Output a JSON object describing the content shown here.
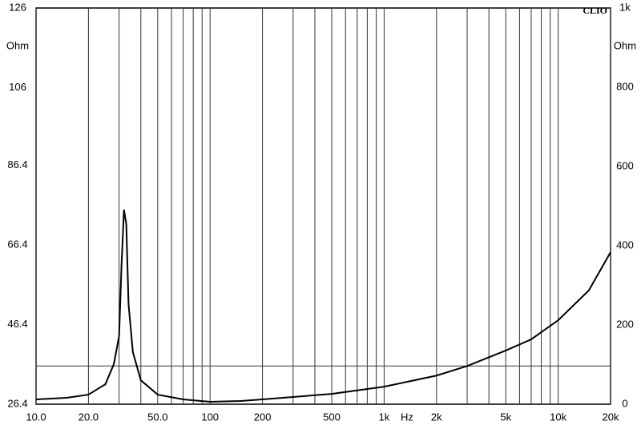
{
  "chart_data": {
    "type": "line",
    "title": "CLIO",
    "x_label": "Hz",
    "y_label": "Ohm",
    "y2_label": "Ohm",
    "log_x": true,
    "color": "#000000",
    "x": [
      10,
      15,
      20,
      25,
      28,
      30,
      31,
      32,
      33,
      34,
      36,
      40,
      50,
      70,
      100,
      150,
      200,
      300,
      500,
      1000,
      2000,
      3000,
      5000,
      7000,
      10000,
      15000,
      20000
    ],
    "values": [
      27.6,
      28,
      28.8,
      31.4,
      36.5,
      43.5,
      61.6,
      75.3,
      71.7,
      51.5,
      39.5,
      32.4,
      28.8,
      27.6,
      27,
      27.2,
      27.6,
      28.2,
      29,
      30.8,
      33.6,
      36,
      39.9,
      42.7,
      47.5,
      55,
      64.6
    ],
    "xlim": [
      10,
      20000
    ],
    "xticks": [
      {
        "value": 10,
        "label": "10.0"
      },
      {
        "value": 20,
        "label": "20.0"
      },
      {
        "value": 50,
        "label": "50.0"
      },
      100,
      200,
      500,
      {
        "value": 1000,
        "label": "1k"
      },
      {
        "value": 2000,
        "label": "2k"
      },
      {
        "value": 5000,
        "label": "5k"
      },
      {
        "value": 10000,
        "label": "10k"
      },
      {
        "value": 20000,
        "label": "20k"
      }
    ],
    "xgrid": [
      10,
      20,
      30,
      40,
      50,
      60,
      70,
      80,
      90,
      100,
      200,
      300,
      400,
      500,
      600,
      700,
      800,
      900,
      1000,
      2000,
      3000,
      4000,
      5000,
      6000,
      7000,
      8000,
      9000,
      10000,
      20000
    ],
    "ylim": [
      26.4,
      126
    ],
    "yticks": [
      26.4,
      46.4,
      66.4,
      86.4,
      106,
      126
    ],
    "y2lim": [
      0,
      1000
    ],
    "y2ticks": [
      0,
      200,
      400,
      600,
      800,
      {
        "value": 1000,
        "label": "1k"
      }
    ],
    "ref_line": 36
  }
}
